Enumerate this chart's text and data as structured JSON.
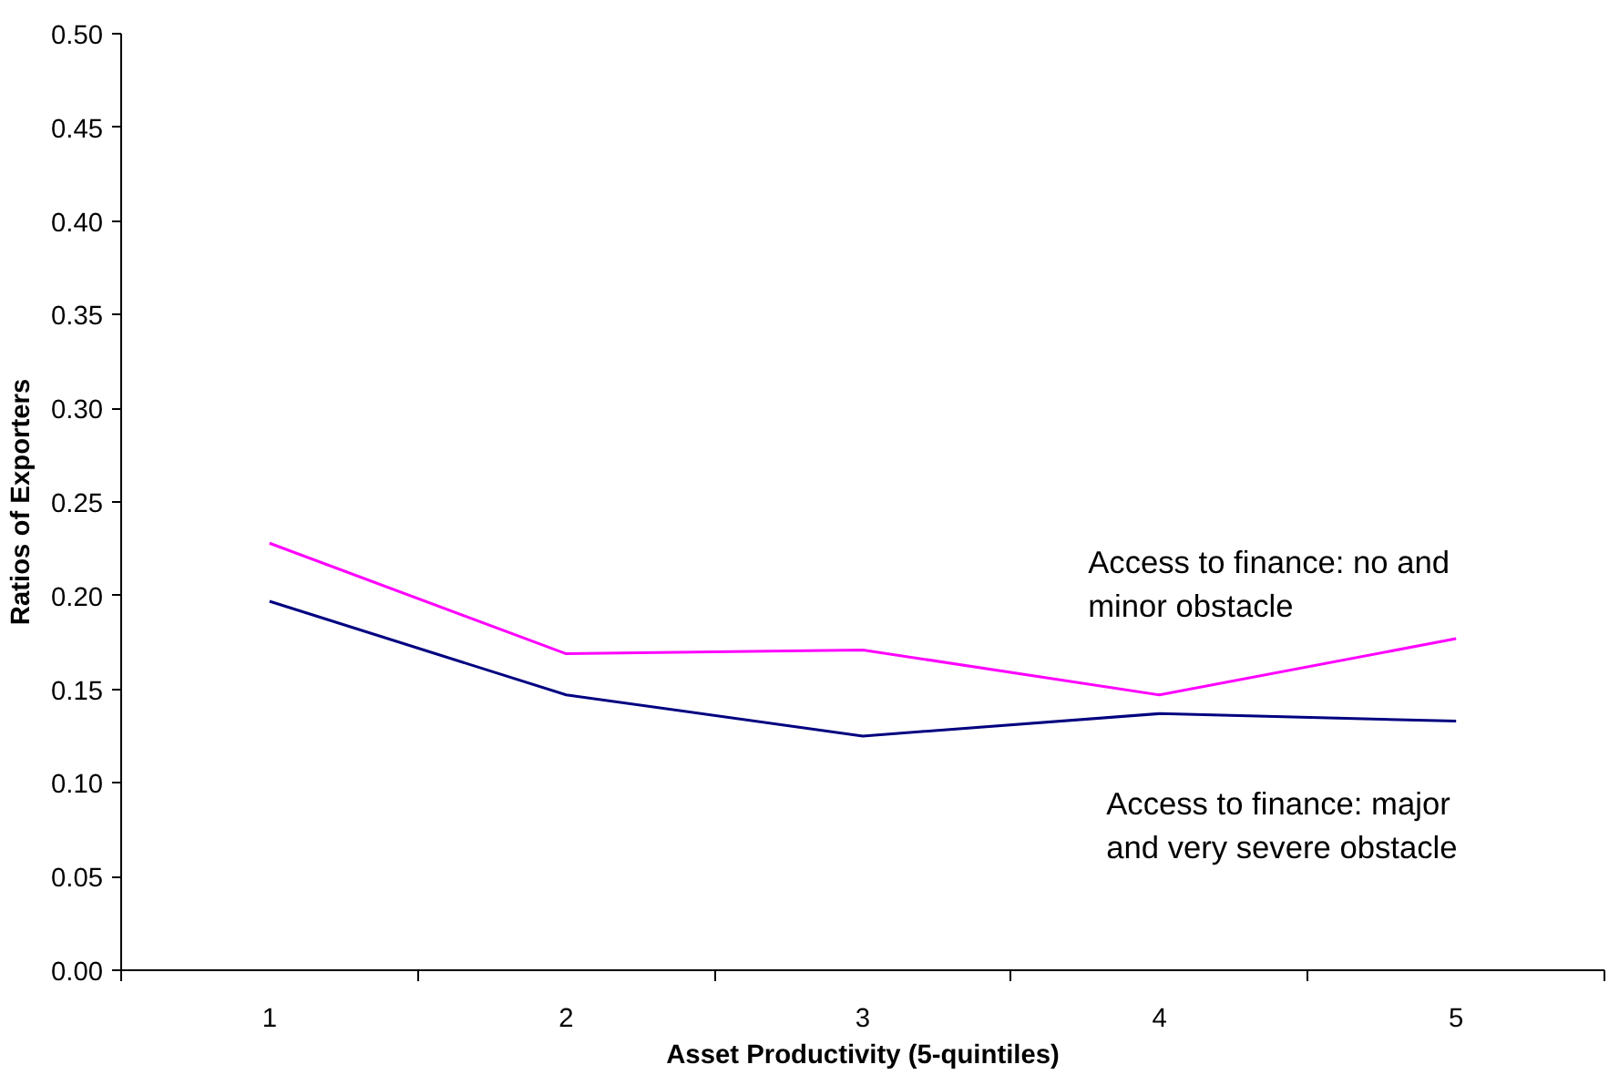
{
  "chart_data": {
    "type": "line",
    "xlabel": "Asset Productivity (5-quintiles)",
    "ylabel": "Ratios of Exporters",
    "categories": [
      "1",
      "2",
      "3",
      "4",
      "5"
    ],
    "series": [
      {
        "name": "Access to finance: no and minor obstacle",
        "color": "#ff00ff",
        "values": [
          0.228,
          0.169,
          0.171,
          0.147,
          0.177
        ]
      },
      {
        "name": "Access to finance: major and very severe obstacle",
        "color": "#000080",
        "values": [
          0.197,
          0.147,
          0.125,
          0.137,
          0.133
        ]
      }
    ],
    "ylim": [
      0,
      0.5
    ],
    "yticks": [
      {
        "value": 0,
        "label": "0.00"
      },
      {
        "value": 0.05,
        "label": "0.05"
      },
      {
        "value": 0.1,
        "label": "0.10"
      },
      {
        "value": 0.15,
        "label": "0.15"
      },
      {
        "value": 0.2,
        "label": "0.20"
      },
      {
        "value": 0.25,
        "label": "0.25"
      },
      {
        "value": 0.3,
        "label": "0.30"
      },
      {
        "value": 0.35,
        "label": "0.35"
      },
      {
        "value": 0.4,
        "label": "0.40"
      },
      {
        "value": 0.45,
        "label": "0.45"
      },
      {
        "value": 0.5,
        "label": "0.50"
      }
    ],
    "grid": false,
    "legend": false,
    "marker": "none",
    "line_style": "solid"
  }
}
